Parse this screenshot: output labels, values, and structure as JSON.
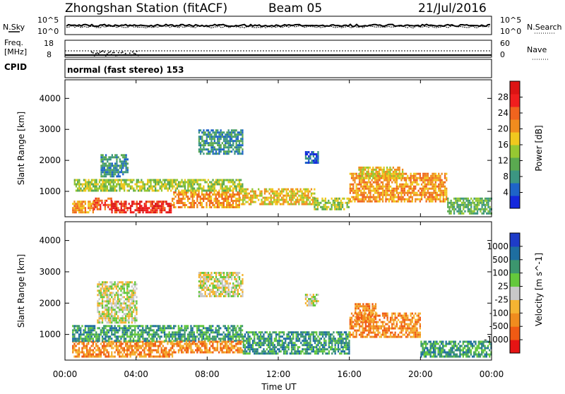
{
  "header": {
    "station": "Zhongshan Station (fitACF)",
    "beam": "Beam 05",
    "date": "21/Jul/2016"
  },
  "status_panels": {
    "nsky_label": "N.Sky",
    "nsearch_label": "N.Search",
    "nsky_top": "10^5",
    "nsky_bottom": "10^0",
    "nsearch_top": "10^5",
    "nsearch_bottom": "10^0",
    "freq_label_1": "Freq.",
    "freq_label_2": "[MHz]",
    "freq_top": "18",
    "freq_bottom": "8",
    "nave_label": "Nave",
    "nave_top": "60",
    "nave_bottom": "0",
    "cpid_label": "CPID",
    "cpid_text": "normal (fast stereo) 153"
  },
  "chart_data": [
    {
      "type": "heatmap",
      "name": "power",
      "ylabel": "Slant Range [km]",
      "yticks": [
        "1000",
        "2000",
        "3000",
        "4000"
      ],
      "ylim": [
        180,
        4600
      ],
      "xlim": [
        "00:00",
        "24:00"
      ],
      "colorbar_label": "Power [dB]",
      "colorbar_ticks": [
        "4",
        "8",
        "12",
        "16",
        "20",
        "24",
        "28"
      ],
      "colorbar_colors": [
        "#1428dc",
        "#1e64c8",
        "#3c9682",
        "#5aaa50",
        "#96c832",
        "#f0c81e",
        "#f08c1e",
        "#f0641e",
        "#f01e1e",
        "#dc1414"
      ],
      "regions": [
        {
          "t": [
            0.4,
            1.6
          ],
          "r": [
            300,
            700
          ],
          "level": 6
        },
        {
          "t": [
            1.6,
            2.6
          ],
          "r": [
            400,
            800
          ],
          "level": 7
        },
        {
          "t": [
            2.6,
            6.0
          ],
          "r": [
            300,
            700
          ],
          "level": 8
        },
        {
          "t": [
            6.0,
            9.8
          ],
          "r": [
            500,
            1000
          ],
          "level": 6
        },
        {
          "t": [
            9.8,
            14.0
          ],
          "r": [
            600,
            1100
          ],
          "level": 5
        },
        {
          "t": [
            14.0,
            16.0
          ],
          "r": [
            400,
            800
          ],
          "level": 4
        },
        {
          "t": [
            16.0,
            21.5
          ],
          "r": [
            700,
            1600
          ],
          "level": 6
        },
        {
          "t": [
            21.5,
            24.0
          ],
          "r": [
            300,
            800
          ],
          "level": 3
        },
        {
          "t": [
            0.5,
            10.0
          ],
          "r": [
            1000,
            1400
          ],
          "level": 4
        },
        {
          "t": [
            2.0,
            3.5
          ],
          "r": [
            1500,
            2200
          ],
          "level": 2
        },
        {
          "t": [
            7.5,
            10.0
          ],
          "r": [
            2200,
            3000
          ],
          "level": 2
        },
        {
          "t": [
            13.5,
            14.2
          ],
          "r": [
            1900,
            2300
          ],
          "level": 1
        },
        {
          "t": [
            16.5,
            19.0
          ],
          "r": [
            1400,
            1800
          ],
          "level": 5
        }
      ]
    },
    {
      "type": "heatmap",
      "name": "velocity",
      "ylabel": "Slant Range [km]",
      "yticks": [
        "1000",
        "2000",
        "3000",
        "4000"
      ],
      "ylim": [
        180,
        4600
      ],
      "xlim": [
        "00:00",
        "24:00"
      ],
      "xticks": [
        "00:00",
        "04:00",
        "08:00",
        "12:00",
        "16:00",
        "20:00",
        "00:00"
      ],
      "xlabel": "Time UT",
      "colorbar_label": "Velocity [m s^-1]",
      "colorbar_ticks": [
        "-1000",
        "-500",
        "-100",
        "-25",
        "25",
        "100",
        "500",
        "1000"
      ],
      "colorbar_colors": [
        "#e61414",
        "#f05a14",
        "#f08c1e",
        "#f5b432",
        "#c8c8c8",
        "#64c83c",
        "#3c966e",
        "#1e6ea0",
        "#1e3cc8"
      ],
      "regions": [
        {
          "t": [
            0.4,
            6.0
          ],
          "r": [
            300,
            800
          ],
          "level": 2
        },
        {
          "t": [
            0.4,
            10.0
          ],
          "r": [
            800,
            1300
          ],
          "level": 6
        },
        {
          "t": [
            6.0,
            10.0
          ],
          "r": [
            400,
            800
          ],
          "level": 2
        },
        {
          "t": [
            10.0,
            16.0
          ],
          "r": [
            400,
            1100
          ],
          "level": 6
        },
        {
          "t": [
            16.0,
            20.0
          ],
          "r": [
            900,
            1700
          ],
          "level": 2
        },
        {
          "t": [
            20.0,
            24.0
          ],
          "r": [
            300,
            800
          ],
          "level": 6
        },
        {
          "t": [
            1.8,
            4.0
          ],
          "r": [
            1400,
            2700
          ],
          "level": 4
        },
        {
          "t": [
            7.5,
            10.0
          ],
          "r": [
            2200,
            3000
          ],
          "level": 4
        },
        {
          "t": [
            13.5,
            14.2
          ],
          "r": [
            1900,
            2300
          ],
          "level": 4
        },
        {
          "t": [
            16.3,
            17.5
          ],
          "r": [
            1400,
            2000
          ],
          "level": 2
        }
      ]
    }
  ]
}
